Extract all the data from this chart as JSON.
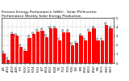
{
  "title_line1": "Premier Energy Performance (kWh) - Solar PV/Inverter",
  "title_line2": "Performance Weekly Solar Energy Production",
  "background_color": "#ffffff",
  "bar_color": "#ff0000",
  "grid_color": "#888888",
  "categories": [
    "4/5",
    "4/12",
    "4/19",
    "4/26",
    "5/3",
    "5/10",
    "5/17",
    "5/24",
    "5/31",
    "6/7",
    "6/14",
    "6/21",
    "6/28",
    "7/5",
    "7/12",
    "7/19",
    "7/26",
    "8/2",
    "8/9",
    "8/16",
    "8/23",
    "8/30",
    "9/6",
    "9/13",
    "9/20",
    "9/27"
  ],
  "values": [
    1.1,
    0.4,
    3.2,
    3.0,
    1.8,
    1.3,
    2.8,
    3.2,
    3.5,
    3.6,
    2.9,
    3.8,
    3.8,
    2.5,
    3.4,
    3.4,
    2.0,
    2.2,
    3.0,
    2.5,
    3.5,
    3.8,
    2.5,
    2.5,
    4.2,
    3.8
  ],
  "ylim": [
    0,
    5.0
  ],
  "yticks": [
    0,
    1,
    2,
    3,
    4,
    5
  ],
  "title_fontsize": 3.2,
  "tick_fontsize": 2.8,
  "bar_label_fontsize": 2.2
}
